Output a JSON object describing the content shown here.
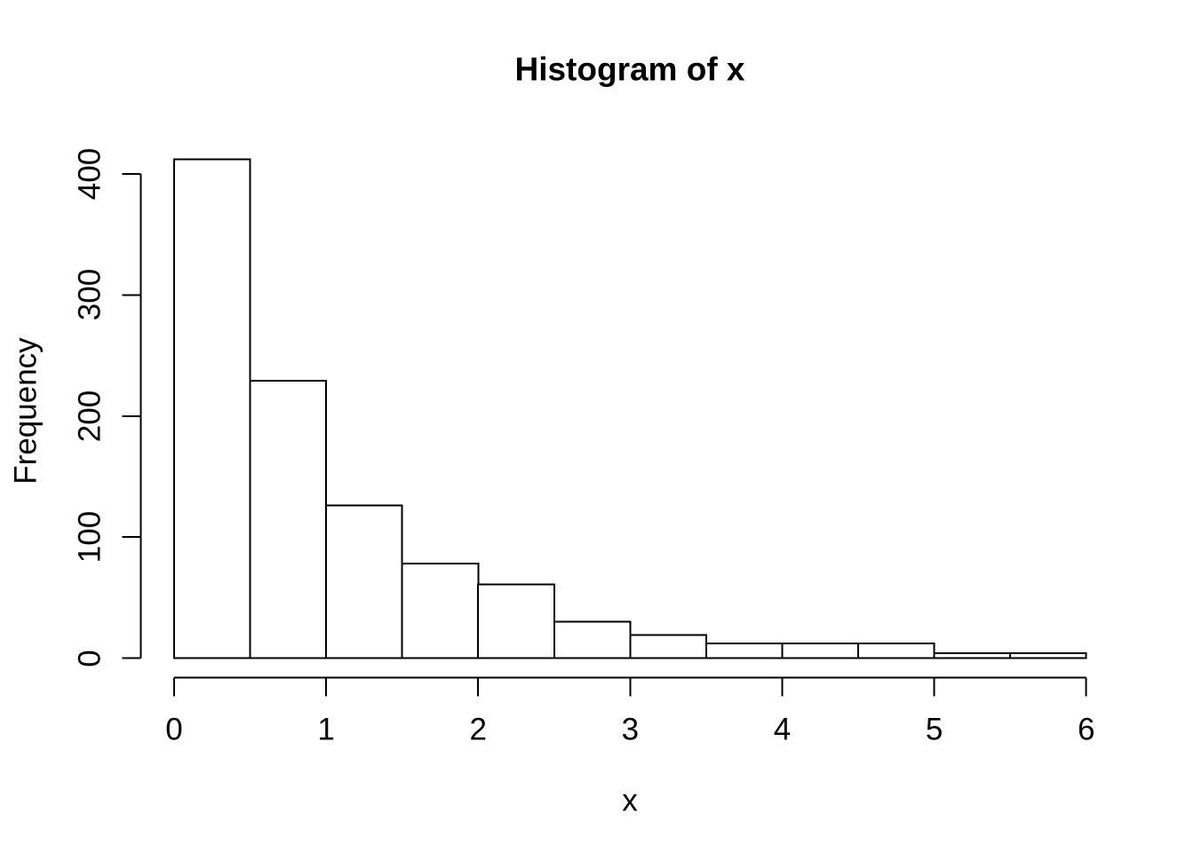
{
  "chart_data": {
    "type": "bar",
    "subtype": "histogram",
    "title": "Histogram of x",
    "xlabel": "x",
    "ylabel": "Frequency",
    "bin_edges": [
      0,
      0.5,
      1,
      1.5,
      2,
      2.5,
      3,
      3.5,
      4,
      4.5,
      5,
      5.5,
      6
    ],
    "counts": [
      412,
      229,
      126,
      78,
      61,
      30,
      19,
      12,
      12,
      12,
      4,
      4
    ],
    "x_ticks": [
      "0",
      "1",
      "2",
      "3",
      "4",
      "5",
      "6"
    ],
    "x_tick_values": [
      0,
      1,
      2,
      3,
      4,
      5,
      6
    ],
    "y_ticks": [
      "0",
      "100",
      "200",
      "300",
      "400"
    ],
    "y_tick_values": [
      0,
      100,
      200,
      300,
      400
    ],
    "xlim": [
      0,
      6
    ],
    "ylim": [
      0,
      412
    ],
    "grid": false,
    "legend": false,
    "bar_fill": "#ffffff",
    "stroke_color": "#000000",
    "background": "#ffffff"
  }
}
